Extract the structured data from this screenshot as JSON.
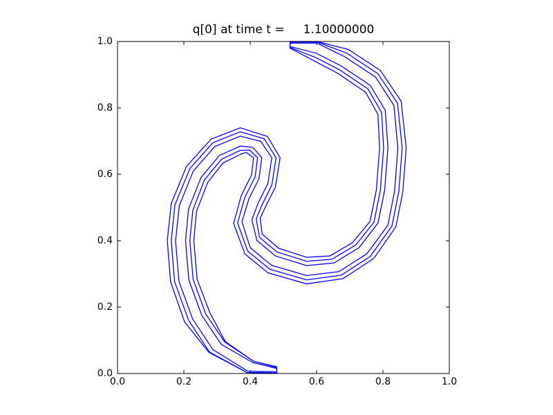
{
  "chart_data": {
    "type": "contour",
    "title": "q[0] at time t =     1.10000000",
    "xlim": [
      0,
      1
    ],
    "ylim": [
      0,
      1
    ],
    "xticks": [
      {
        "value": 0,
        "label": "0.0"
      },
      0.2,
      0.4,
      0.6,
      0.8,
      {
        "value": 1,
        "label": "1.0"
      }
    ],
    "yticks": [
      {
        "value": 0,
        "label": "0.0"
      },
      0.2,
      0.4,
      0.6,
      0.8,
      {
        "value": 1,
        "label": "1.0"
      }
    ],
    "series": [
      {
        "color": "#0000ff",
        "x": [
          0.48,
          0.39,
          0.275,
          0.202,
          0.16,
          0.15,
          0.162,
          0.208,
          0.282,
          0.37,
          0.452,
          0.49,
          0.476,
          0.447,
          0.43,
          0.436,
          0.486,
          0.57,
          0.64,
          0.708,
          0.761,
          0.78,
          0.79,
          0.785,
          0.748,
          0.664,
          0.596,
          0.52,
          0.52,
          0.602,
          0.696,
          0.792,
          0.855,
          0.87,
          0.86,
          0.839,
          0.772,
          0.68,
          0.57,
          0.454,
          0.384,
          0.35,
          0.373,
          0.404,
          0.41,
          0.388,
          0.37,
          0.318,
          0.272,
          0.238,
          0.23,
          0.24,
          0.278,
          0.325,
          0.41,
          0.48
        ],
        "y": [
          0.0,
          0.003,
          0.064,
          0.156,
          0.276,
          0.4,
          0.512,
          0.624,
          0.706,
          0.74,
          0.714,
          0.65,
          0.562,
          0.504,
          0.468,
          0.42,
          0.377,
          0.35,
          0.354,
          0.394,
          0.458,
          0.552,
          0.68,
          0.78,
          0.847,
          0.904,
          0.94,
          0.98,
          1.0,
          1.0,
          0.976,
          0.913,
          0.82,
          0.68,
          0.548,
          0.442,
          0.346,
          0.286,
          0.27,
          0.303,
          0.36,
          0.452,
          0.536,
          0.598,
          0.65,
          0.666,
          0.66,
          0.634,
          0.576,
          0.488,
          0.4,
          0.284,
          0.184,
          0.096,
          0.037,
          0.02
        ]
      },
      {
        "color": "#0000ff",
        "x": [
          0.48,
          0.39,
          0.277,
          0.214,
          0.172,
          0.162,
          0.173,
          0.218,
          0.287,
          0.37,
          0.442,
          0.478,
          0.465,
          0.436,
          0.418,
          0.428,
          0.481,
          0.57,
          0.646,
          0.718,
          0.773,
          0.792,
          0.802,
          0.796,
          0.755,
          0.669,
          0.597,
          0.52,
          0.52,
          0.603,
          0.691,
          0.785,
          0.844,
          0.858,
          0.848,
          0.827,
          0.762,
          0.674,
          0.57,
          0.459,
          0.392,
          0.362,
          0.384,
          0.415,
          0.422,
          0.398,
          0.37,
          0.313,
          0.262,
          0.227,
          0.218,
          0.228,
          0.266,
          0.323,
          0.41,
          0.48
        ],
        "y": [
          0.002,
          0.003,
          0.065,
          0.161,
          0.277,
          0.4,
          0.508,
          0.617,
          0.695,
          0.728,
          0.707,
          0.65,
          0.567,
          0.509,
          0.466,
          0.41,
          0.366,
          0.338,
          0.344,
          0.387,
          0.456,
          0.551,
          0.68,
          0.786,
          0.857,
          0.915,
          0.952,
          0.982,
          0.998,
          0.998,
          0.965,
          0.903,
          0.814,
          0.68,
          0.549,
          0.444,
          0.353,
          0.296,
          0.282,
          0.314,
          0.369,
          0.454,
          0.531,
          0.593,
          0.65,
          0.673,
          0.672,
          0.645,
          0.583,
          0.492,
          0.4,
          0.283,
          0.179,
          0.095,
          0.037,
          0.018
        ]
      },
      {
        "color": "#0000ff",
        "x": [
          0.48,
          0.3925,
          0.2875,
          0.226,
          0.185,
          0.175,
          0.186,
          0.228,
          0.293,
          0.37,
          0.432,
          0.465,
          0.4535,
          0.424,
          0.405,
          0.42,
          0.476,
          0.57,
          0.6525,
          0.728,
          0.785,
          0.805,
          0.815,
          0.807,
          0.762,
          0.674,
          0.5985,
          0.52,
          0.52,
          0.6015,
          0.686,
          0.778,
          0.833,
          0.845,
          0.835,
          0.815,
          0.752,
          0.6675,
          0.57,
          0.464,
          0.4,
          0.375,
          0.396,
          0.4265,
          0.435,
          0.408,
          0.37,
          0.307,
          0.252,
          0.214,
          0.205,
          0.215,
          0.254,
          0.3125,
          0.4075,
          0.48
        ],
        "y": [
          0.005,
          0.007,
          0.072,
          0.165,
          0.2785,
          0.4,
          0.5045,
          0.609,
          0.6835,
          0.715,
          0.699,
          0.65,
          0.573,
          0.514,
          0.463,
          0.401,
          0.354,
          0.325,
          0.333,
          0.379,
          0.453,
          0.551,
          0.68,
          0.7925,
          0.8675,
          0.9265,
          0.965,
          0.985,
          0.995,
          0.995,
          0.9535,
          0.8925,
          0.8075,
          0.68,
          0.549,
          0.447,
          0.361,
          0.307,
          0.295,
          0.326,
          0.379,
          0.457,
          0.526,
          0.587,
          0.65,
          0.681,
          0.685,
          0.6565,
          0.591,
          0.4955,
          0.4,
          0.2815,
          0.175,
          0.088,
          0.033,
          0.015
        ]
      }
    ]
  }
}
